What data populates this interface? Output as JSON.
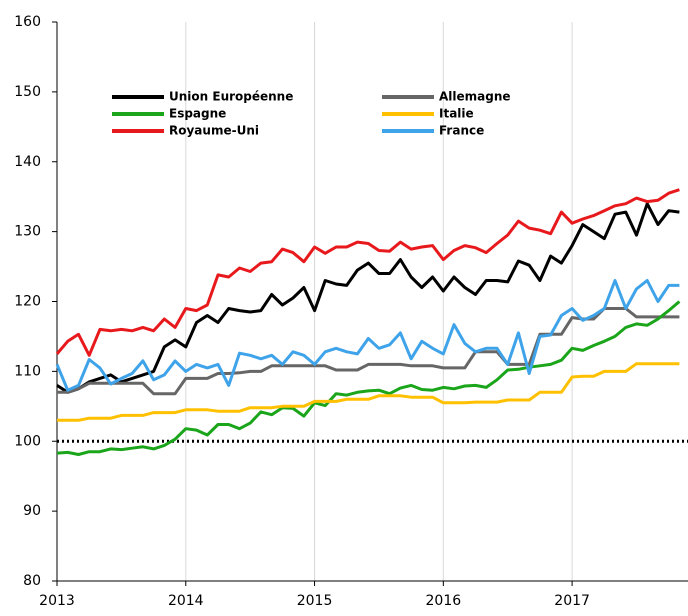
{
  "chart_data": {
    "type": "line",
    "x": [
      2013,
      2013.083,
      2013.167,
      2013.25,
      2013.333,
      2013.417,
      2013.5,
      2013.583,
      2013.667,
      2013.75,
      2013.833,
      2013.917,
      2014,
      2014.083,
      2014.167,
      2014.25,
      2014.333,
      2014.417,
      2014.5,
      2014.583,
      2014.667,
      2014.75,
      2014.833,
      2014.917,
      2015,
      2015.083,
      2015.167,
      2015.25,
      2015.333,
      2015.417,
      2015.5,
      2015.583,
      2015.667,
      2015.75,
      2015.833,
      2015.917,
      2016,
      2016.083,
      2016.167,
      2016.25,
      2016.333,
      2016.417,
      2016.5,
      2016.583,
      2016.667,
      2016.75,
      2016.833,
      2016.917,
      2017,
      2017.083,
      2017.167,
      2017.25,
      2017.333,
      2017.417,
      2017.5,
      2017.583,
      2017.667,
      2017.75,
      2017.833
    ],
    "series": [
      {
        "name": "Union Européenne",
        "color": "#000000",
        "values": [
          108,
          107,
          107.5,
          108.5,
          109,
          109.5,
          108.5,
          109,
          109.5,
          110,
          113.5,
          114.5,
          113.5,
          117,
          118,
          117,
          119,
          118.7,
          118.5,
          118.7,
          121,
          119.5,
          120.5,
          122,
          118.7,
          123,
          122.5,
          122.3,
          124.5,
          125.5,
          124,
          124,
          126,
          123.5,
          122,
          123.5,
          121.5,
          123.5,
          122,
          121,
          123,
          123,
          122.8,
          125.8,
          125.2,
          123,
          126.5,
          125.5,
          128,
          131,
          130,
          129,
          132.5,
          132.8,
          129.5,
          134,
          131,
          133,
          132.8
        ]
      },
      {
        "name": "Allemagne",
        "color": "#666666",
        "values": [
          107,
          107,
          107.5,
          108.3,
          108.3,
          108.3,
          108.3,
          108.3,
          108.3,
          106.8,
          106.8,
          106.8,
          109,
          109,
          109,
          109.7,
          109.7,
          109.8,
          110,
          110,
          110.8,
          110.8,
          110.8,
          110.8,
          110.8,
          110.8,
          110.2,
          110.2,
          110.2,
          111,
          111,
          111,
          111,
          110.8,
          110.8,
          110.8,
          110.5,
          110.5,
          110.5,
          112.8,
          112.8,
          112.8,
          111,
          111,
          111,
          115.3,
          115.3,
          115.3,
          117.7,
          117.5,
          117.5,
          119,
          119,
          119,
          117.8,
          117.8,
          117.8,
          117.8,
          117.8
        ]
      },
      {
        "name": "Espagne",
        "color": "#1aa51a",
        "values": [
          98.3,
          98.4,
          98.1,
          98.5,
          98.5,
          98.9,
          98.8,
          99,
          99.2,
          98.9,
          99.4,
          100.3,
          101.8,
          101.6,
          100.9,
          102.4,
          102.4,
          101.8,
          102.6,
          104.2,
          103.8,
          104.8,
          104.7,
          103.6,
          105.5,
          105.1,
          106.8,
          106.6,
          107,
          107.2,
          107.3,
          106.8,
          107.6,
          108,
          107.4,
          107.3,
          107.7,
          107.5,
          107.9,
          108,
          107.7,
          108.8,
          110.2,
          110.3,
          110.6,
          110.8,
          111,
          111.6,
          113.3,
          113,
          113.7,
          114.3,
          115,
          116.3,
          116.8,
          116.6,
          117.5,
          118.7,
          120
        ]
      },
      {
        "name": "Italie",
        "color": "#ffc000",
        "values": [
          103,
          103,
          103,
          103.3,
          103.3,
          103.3,
          103.7,
          103.7,
          103.7,
          104.1,
          104.1,
          104.1,
          104.5,
          104.5,
          104.5,
          104.3,
          104.3,
          104.3,
          104.8,
          104.8,
          104.8,
          105,
          105,
          105,
          105.7,
          105.7,
          105.7,
          106,
          106,
          106,
          106.5,
          106.5,
          106.5,
          106.3,
          106.3,
          106.3,
          105.5,
          105.5,
          105.5,
          105.6,
          105.6,
          105.6,
          105.9,
          105.9,
          105.9,
          107,
          107,
          107,
          109.2,
          109.3,
          109.3,
          110,
          110,
          110,
          111.1,
          111.1,
          111.1,
          111.1,
          111.1
        ]
      },
      {
        "name": "Royaume-Uni",
        "color": "#e8191c",
        "values": [
          112.5,
          114.3,
          115.3,
          112.3,
          116,
          115.8,
          116,
          115.8,
          116.3,
          115.8,
          117.5,
          116.3,
          119,
          118.7,
          119.5,
          123.8,
          123.5,
          124.8,
          124.3,
          125.5,
          125.7,
          127.5,
          127,
          125.7,
          127.8,
          126.9,
          127.8,
          127.8,
          128.5,
          128.3,
          127.3,
          127.2,
          128.5,
          127.5,
          127.8,
          128,
          126,
          127.3,
          128,
          127.7,
          127,
          128.3,
          129.5,
          131.5,
          130.5,
          130.2,
          129.7,
          132.8,
          131.2,
          131.8,
          132.3,
          133,
          133.7,
          134,
          134.8,
          134.3,
          134.5,
          135.5,
          136
        ]
      },
      {
        "name": "France",
        "color": "#3fa3ea",
        "values": [
          111,
          107.3,
          108,
          111.7,
          110.5,
          108.2,
          109,
          109.7,
          111.5,
          108.8,
          109.5,
          111.5,
          110,
          111,
          110.5,
          111,
          108,
          112.6,
          112.3,
          111.8,
          112.3,
          111,
          112.8,
          112.3,
          111,
          112.8,
          113.3,
          112.8,
          112.5,
          114.7,
          113.3,
          113.8,
          115.5,
          111.8,
          114.3,
          113.3,
          112.5,
          116.7,
          114,
          112.8,
          113.3,
          113.3,
          111,
          115.5,
          109.7,
          115,
          115.2,
          118,
          119,
          117.3,
          118,
          119,
          123,
          119,
          121.8,
          123,
          120,
          122.3,
          122.3
        ]
      }
    ],
    "xlim": [
      2013,
      2017.9
    ],
    "xticks": [
      2013,
      2014,
      2015,
      2016,
      2017
    ],
    "ylim": [
      80,
      160
    ],
    "yticks": [
      80,
      90,
      100,
      110,
      120,
      130,
      140,
      150,
      160
    ],
    "reference_line": 100,
    "grid": "x"
  }
}
